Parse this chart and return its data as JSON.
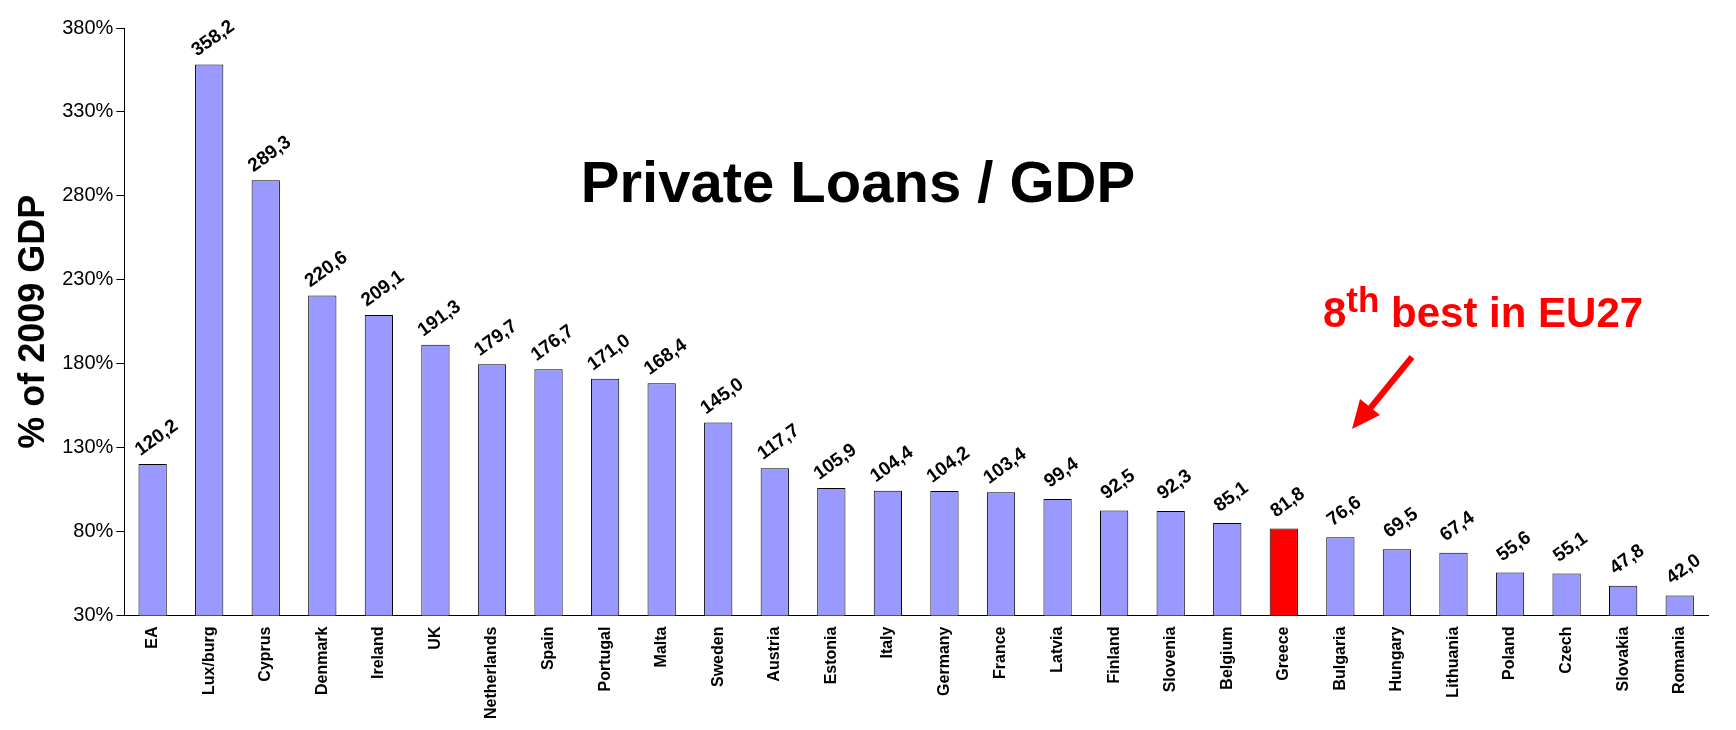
{
  "chart_data": {
    "type": "bar",
    "title": "Private Loans / GDP",
    "ylabel": "% of 2009 GDP",
    "categories": [
      "EA",
      "Lux/burg",
      "Cyprus",
      "Denmark",
      "Ireland",
      "UK",
      "Netherlands",
      "Spain",
      "Portugal",
      "Malta",
      "Sweden",
      "Austria",
      "Estonia",
      "Italy",
      "Germany",
      "France",
      "Latvia",
      "Finland",
      "Slovenia",
      "Belgium",
      "Greece",
      "Bulgaria",
      "Hungary",
      "Lithuania",
      "Poland",
      "Czech",
      "Slovakia",
      "Romania"
    ],
    "values": [
      120.2,
      358.2,
      289.3,
      220.6,
      209.1,
      191.3,
      179.7,
      176.7,
      171.0,
      168.4,
      145.0,
      117.7,
      105.9,
      104.4,
      104.2,
      103.4,
      99.4,
      92.5,
      92.3,
      85.1,
      81.8,
      76.6,
      69.5,
      67.4,
      55.6,
      55.1,
      47.8,
      42.0
    ],
    "value_labels": [
      "120,2",
      "358,2",
      "289,3",
      "220,6",
      "209,1",
      "191,3",
      "179,7",
      "176,7",
      "171,0",
      "168,4",
      "145,0",
      "117,7",
      "105,9",
      "104,4",
      "104,2",
      "103,4",
      "99,4",
      "92,5",
      "92,3",
      "85,1",
      "81,8",
      "76,6",
      "69,5",
      "67,4",
      "55,6",
      "55,1",
      "47,8",
      "42,0"
    ],
    "colors": [
      "#9999ff",
      "#9999ff",
      "#9999ff",
      "#9999ff",
      "#9999ff",
      "#9999ff",
      "#9999ff",
      "#9999ff",
      "#9999ff",
      "#9999ff",
      "#9999ff",
      "#9999ff",
      "#9999ff",
      "#9999ff",
      "#9999ff",
      "#9999ff",
      "#9999ff",
      "#9999ff",
      "#9999ff",
      "#9999ff",
      "#ff0000",
      "#9999ff",
      "#9999ff",
      "#9999ff",
      "#9999ff",
      "#9999ff",
      "#9999ff",
      "#9999ff"
    ],
    "ylim": [
      30,
      380
    ],
    "yticks": [
      {
        "value": 30,
        "label": "30%"
      },
      {
        "value": 80,
        "label": "80%"
      },
      {
        "value": 130,
        "label": "130%"
      },
      {
        "value": 180,
        "label": "180%"
      },
      {
        "value": 230,
        "label": "230%"
      },
      {
        "value": 280,
        "label": "280%"
      },
      {
        "value": 330,
        "label": "330%"
      },
      {
        "value": 380,
        "label": "380%"
      }
    ],
    "annotations": [
      "8$^{th}$ best in EU27"
    ],
    "grid": false,
    "legend": false
  }
}
